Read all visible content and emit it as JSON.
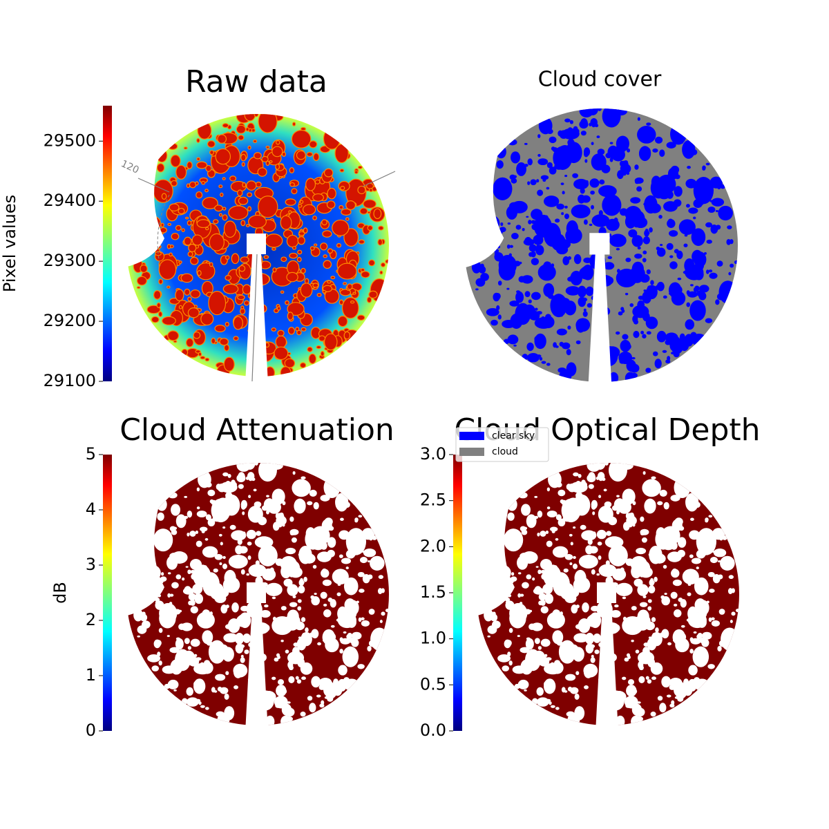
{
  "chart_data": [
    {
      "type": "image",
      "title": "Raw data",
      "colormap": "jet",
      "ylabel": "Pixel values",
      "ylim": [
        29100,
        29559
      ],
      "yticks": [
        29100,
        29200,
        29300,
        29400,
        29500
      ],
      "annotations": [
        "120"
      ]
    },
    {
      "type": "image",
      "title": "Cloud cover",
      "series": [
        {
          "name": "clear sky",
          "color": "#0000ff"
        },
        {
          "name": "cloud",
          "color": "#808080"
        }
      ]
    },
    {
      "type": "image",
      "title": "Cloud Attenuation",
      "colormap": "jet",
      "ylabel": "dB",
      "ylim": [
        0,
        5
      ],
      "yticks": [
        0,
        1,
        2,
        3,
        4,
        5
      ]
    },
    {
      "type": "image",
      "title": "Cloud Optical Depth",
      "colormap": "jet",
      "ylim": [
        0,
        3
      ],
      "yticks": [
        {
          "value": 0,
          "label": "0.0"
        },
        0.5,
        {
          "value": 1,
          "label": "1.0"
        },
        1.5,
        {
          "value": 2,
          "label": "2.0"
        },
        2.5,
        {
          "value": 3,
          "label": "3.0"
        }
      ]
    }
  ]
}
